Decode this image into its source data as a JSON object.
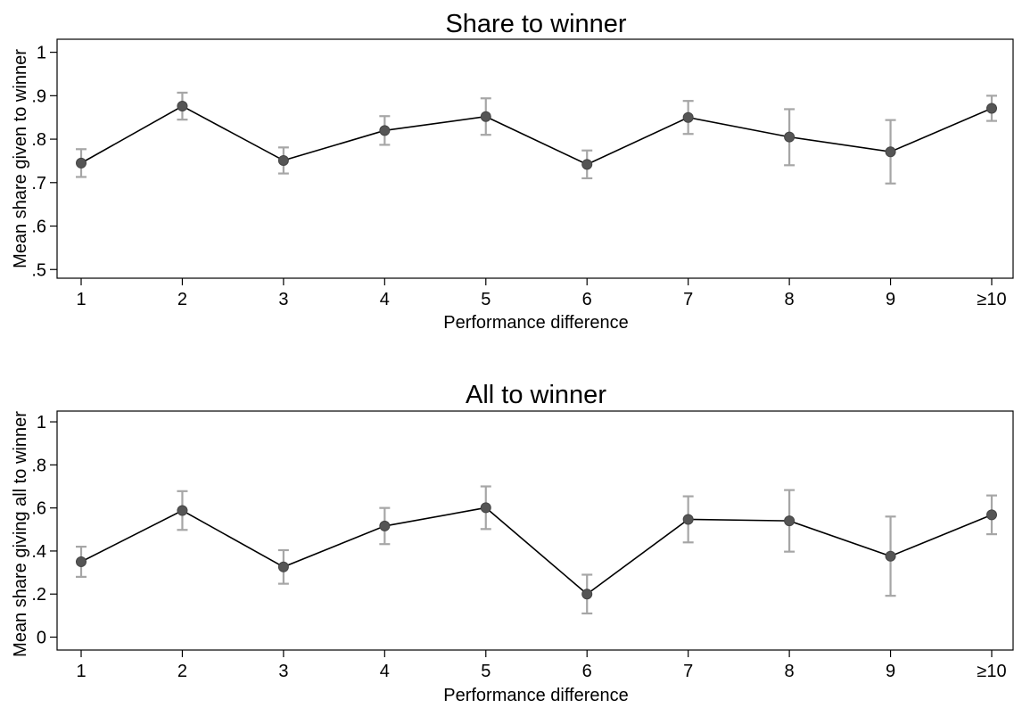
{
  "chart_data": [
    {
      "type": "line",
      "title": "Share to winner",
      "xlabel": "Performance difference",
      "ylabel": "Mean share given to winner",
      "categories": [
        "1",
        "2",
        "3",
        "4",
        "5",
        "6",
        "7",
        "8",
        "9",
        "≥10"
      ],
      "yticks": [
        "1",
        ".9",
        ".8",
        ".7",
        ".6",
        ".5"
      ],
      "ytick_values": [
        1.0,
        0.9,
        0.8,
        0.7,
        0.6,
        0.5
      ],
      "ylim": [
        0.48,
        1.03
      ],
      "grid": false,
      "series": [
        {
          "values": [
            0.745,
            0.876,
            0.751,
            0.82,
            0.852,
            0.742,
            0.85,
            0.805,
            0.771,
            0.871
          ],
          "ci_low": [
            0.713,
            0.845,
            0.721,
            0.787,
            0.81,
            0.71,
            0.812,
            0.74,
            0.698,
            0.842
          ],
          "ci_high": [
            0.777,
            0.907,
            0.781,
            0.853,
            0.894,
            0.774,
            0.888,
            0.869,
            0.844,
            0.9
          ]
        }
      ],
      "colors": {
        "line": "#000000",
        "marker": "#555555",
        "error_bar": "#a6a6a6"
      }
    },
    {
      "type": "line",
      "title": "All to winner",
      "xlabel": "Performance difference",
      "ylabel": "Mean share giving all to winner",
      "categories": [
        "1",
        "2",
        "3",
        "4",
        "5",
        "6",
        "7",
        "8",
        "9",
        "≥10"
      ],
      "yticks": [
        "1",
        ".8",
        ".6",
        ".4",
        ".2",
        "0"
      ],
      "ytick_values": [
        1.0,
        0.8,
        0.6,
        0.4,
        0.2,
        0.0
      ],
      "ylim": [
        -0.06,
        1.05
      ],
      "grid": false,
      "series": [
        {
          "values": [
            0.35,
            0.588,
            0.326,
            0.516,
            0.601,
            0.2,
            0.547,
            0.54,
            0.376,
            0.568
          ],
          "ci_low": [
            0.28,
            0.498,
            0.248,
            0.432,
            0.502,
            0.11,
            0.44,
            0.397,
            0.192,
            0.478
          ],
          "ci_high": [
            0.42,
            0.678,
            0.404,
            0.6,
            0.7,
            0.29,
            0.654,
            0.683,
            0.56,
            0.658
          ]
        }
      ],
      "colors": {
        "line": "#000000",
        "marker": "#555555",
        "error_bar": "#a6a6a6"
      }
    }
  ]
}
